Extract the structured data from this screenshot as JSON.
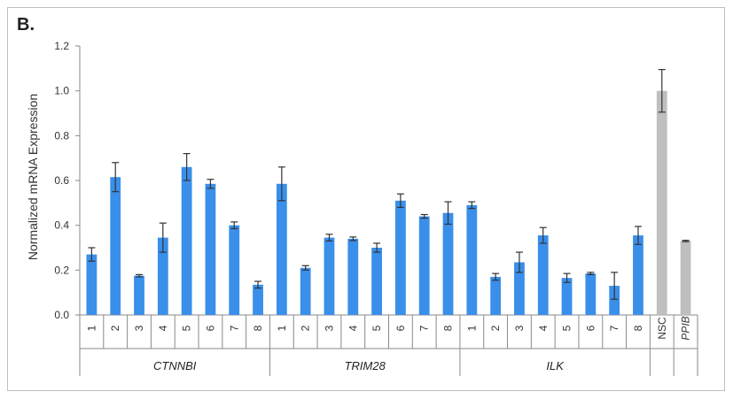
{
  "panel_label": "B.",
  "colors": {
    "experimental": "#3a8fea",
    "control": "#bfbfbf",
    "error_bar": "#333333",
    "axis": "#8a8a8a"
  },
  "chart_data": {
    "type": "bar",
    "title": "",
    "xlabel": "",
    "ylabel": "Normalized mRNA Expression",
    "ylim": [
      0,
      1.2
    ],
    "yticks": [
      "0.0",
      "0.2",
      "0.4",
      "0.6",
      "0.8",
      "1.0",
      "1.2"
    ],
    "grid": false,
    "legend": "none",
    "groups": [
      {
        "name": "CTNNBI",
        "italic": true,
        "categories": [
          "1",
          "2",
          "3",
          "4",
          "5",
          "6",
          "7",
          "8"
        ],
        "values": [
          0.27,
          0.615,
          0.175,
          0.345,
          0.66,
          0.585,
          0.4,
          0.135
        ],
        "errors": [
          0.03,
          0.065,
          0.005,
          0.065,
          0.06,
          0.02,
          0.015,
          0.015
        ]
      },
      {
        "name": "TRIM28",
        "italic": true,
        "categories": [
          "1",
          "2",
          "3",
          "4",
          "5",
          "6",
          "7",
          "8"
        ],
        "values": [
          0.585,
          0.21,
          0.345,
          0.34,
          0.3,
          0.51,
          0.44,
          0.455
        ],
        "errors": [
          0.075,
          0.01,
          0.015,
          0.008,
          0.02,
          0.03,
          0.008,
          0.05
        ]
      },
      {
        "name": "ILK",
        "italic": true,
        "categories": [
          "1",
          "2",
          "3",
          "4",
          "5",
          "6",
          "7",
          "8"
        ],
        "values": [
          0.49,
          0.17,
          0.235,
          0.355,
          0.165,
          0.185,
          0.13,
          0.355
        ],
        "errors": [
          0.015,
          0.015,
          0.045,
          0.035,
          0.02,
          0.005,
          0.06,
          0.04
        ]
      },
      {
        "name": "",
        "italic": false,
        "control": true,
        "categories": [
          "NSC"
        ],
        "values": [
          1.0
        ],
        "errors": [
          0.095
        ]
      },
      {
        "name": "",
        "italic": true,
        "control": true,
        "categories": [
          "PPIB"
        ],
        "values": [
          0.33
        ],
        "errors": [
          0.003
        ]
      }
    ]
  }
}
